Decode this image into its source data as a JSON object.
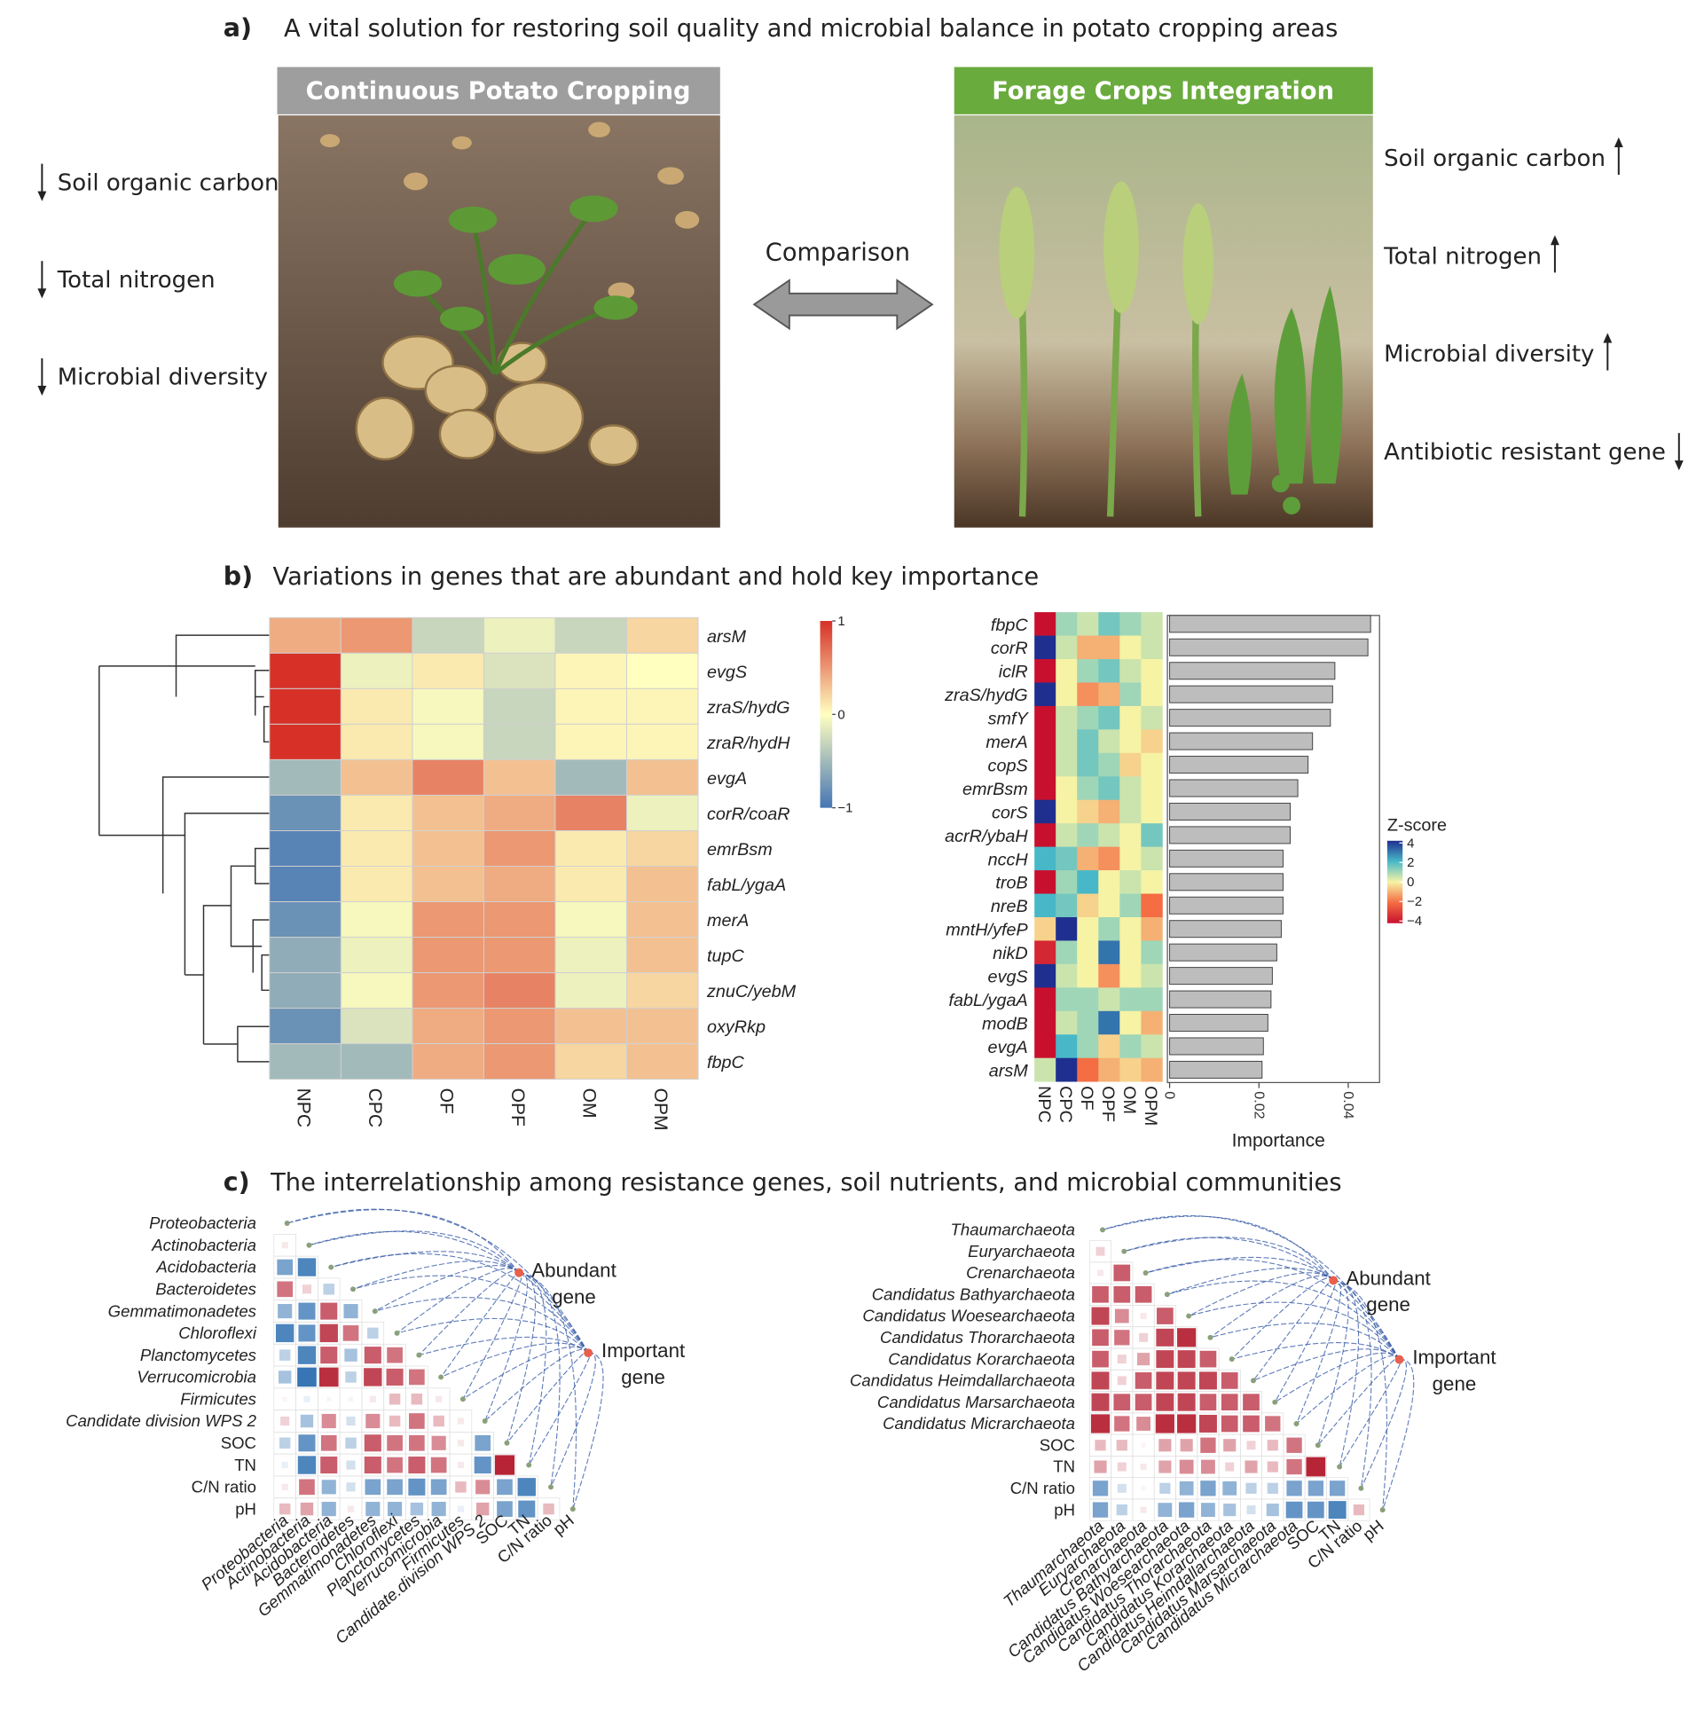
{
  "panel_a": {
    "label": "a)",
    "title": "A vital solution for restoring soil quality and microbial balance in potato cropping areas",
    "left": {
      "header": "Continuous Potato Cropping",
      "indicators": [
        {
          "text": "Soil organic carbon",
          "direction": "down"
        },
        {
          "text": "Total nitrogen",
          "direction": "down"
        },
        {
          "text": "Microbial diversity",
          "direction": "down"
        }
      ]
    },
    "right": {
      "header": "Forage Crops Integration",
      "indicators": [
        {
          "text": "Soil organic carbon",
          "direction": "up"
        },
        {
          "text": "Total nitrogen",
          "direction": "up"
        },
        {
          "text": "Microbial diversity",
          "direction": "up"
        },
        {
          "text": "Antibiotic resistant gene",
          "direction": "down"
        }
      ]
    },
    "comparison": "Comparison"
  },
  "panel_b": {
    "label": "b)",
    "title": "Variations in genes that are abundant and hold key importance",
    "heatmap": {
      "type": "heatmap",
      "rows": [
        "arsM",
        "evgS",
        "zraS/hydG",
        "zraR/hydH",
        "evgA",
        "corR/coaR",
        "emrBsm",
        "fabL/ygaA",
        "merA",
        "tupC",
        "znuC/yebM",
        "oxyRkp",
        "fbpC"
      ],
      "columns": [
        "NPC",
        "CPC",
        "OF",
        "OPF",
        "OM",
        "OPM"
      ],
      "values": [
        [
          0.4,
          0.5,
          -0.3,
          -0.1,
          -0.3,
          0.2
        ],
        [
          1,
          -0.1,
          0.1,
          -0.2,
          0.05,
          0
        ],
        [
          1,
          0.1,
          -0.05,
          -0.3,
          0.05,
          0.05
        ],
        [
          1,
          0.1,
          -0.05,
          -0.3,
          0.05,
          0.05
        ],
        [
          -0.5,
          0.3,
          0.6,
          0.3,
          -0.5,
          0.3
        ],
        [
          -0.8,
          0.1,
          0.3,
          0.4,
          0.6,
          -0.1
        ],
        [
          -0.9,
          0.1,
          0.3,
          0.5,
          0.1,
          0.2
        ],
        [
          -0.9,
          0.1,
          0.3,
          0.4,
          0.1,
          0.3
        ],
        [
          -0.8,
          -0.05,
          0.5,
          0.5,
          -0.05,
          0.3
        ],
        [
          -0.6,
          -0.1,
          0.5,
          0.5,
          -0.1,
          0.3
        ],
        [
          -0.6,
          -0.05,
          0.5,
          0.6,
          -0.1,
          0.2
        ],
        [
          -0.8,
          -0.2,
          0.4,
          0.5,
          0.3,
          0.3
        ],
        [
          -0.5,
          -0.5,
          0.4,
          0.5,
          0.2,
          0.3
        ]
      ],
      "colormap": [
        "#4575b4",
        "#ffffbf",
        "#d73027"
      ],
      "zlim": [
        -1,
        1
      ],
      "zticks": [
        1,
        0,
        {
          "value": -1,
          "label": "−1"
        }
      ]
    },
    "importance": {
      "type": "heatmap-bar",
      "rows": [
        "fbpC",
        "corR",
        "iclR",
        "zraS/hydG",
        "smfY",
        "merA",
        "copS",
        "emrBsm",
        "corS",
        "acrR/ybaH",
        "nccH",
        "troB",
        "nreB",
        "mntH/yfeP",
        "nikD",
        "evgS",
        "fabL/ygaA",
        "modB",
        "evgA",
        "arsM"
      ],
      "columns": [
        "NPC",
        "CPC",
        "OF",
        "OPF",
        "OM",
        "OPM"
      ],
      "values": [
        [
          -4,
          1,
          0.5,
          1.5,
          1,
          0.5
        ],
        [
          4,
          0.5,
          -1,
          -1,
          0,
          0.5
        ],
        [
          -4,
          0,
          1,
          1.5,
          0.5,
          0
        ],
        [
          4,
          0,
          -1.5,
          -1,
          1,
          0
        ],
        [
          -4,
          0.5,
          1,
          1.5,
          0,
          0.5
        ],
        [
          -4,
          0.5,
          1.5,
          0.5,
          0,
          -0.5
        ],
        [
          -4,
          0.5,
          1.5,
          1,
          -0.5,
          0
        ],
        [
          -4,
          0,
          1,
          1.5,
          0.5,
          0
        ],
        [
          4,
          0,
          -0.5,
          -1,
          0.5,
          0
        ],
        [
          -4,
          0.5,
          1,
          0.5,
          0,
          1.5
        ],
        [
          2,
          1.5,
          -1,
          -1.5,
          0,
          0.5
        ],
        [
          -4,
          1,
          2,
          0,
          0.5,
          0
        ],
        [
          2,
          1.5,
          -0.5,
          0,
          1,
          -2
        ],
        [
          -0.5,
          4,
          0,
          1,
          0,
          -1
        ],
        [
          -3.5,
          1,
          0,
          3,
          0,
          1
        ],
        [
          4,
          0.5,
          0,
          -1.5,
          0,
          0.5
        ],
        [
          -4,
          1,
          1,
          0.5,
          1,
          1
        ],
        [
          -4,
          0.5,
          1,
          3,
          0,
          -1
        ],
        [
          -4,
          2,
          1,
          -0.5,
          1,
          0.5
        ],
        [
          0.5,
          4,
          -2,
          -1,
          -0.5,
          -1
        ]
      ],
      "colormap": [
        "#c8102e",
        "#f46d43",
        "#f6f3a5",
        "#48b8c8",
        "#1f2f8f"
      ],
      "zlim": [
        -4,
        4
      ],
      "legend_title": "Z-score",
      "zticks": [
        4,
        2,
        0,
        {
          "value": -2,
          "label": "−2"
        },
        {
          "value": -4,
          "label": "−4"
        }
      ],
      "bar_values": [
        0.045,
        0.0444,
        0.037,
        0.0365,
        0.036,
        0.032,
        0.031,
        0.0287,
        0.027,
        0.027,
        0.0254,
        0.0254,
        0.0254,
        0.025,
        0.024,
        0.023,
        0.0227,
        0.022,
        0.021,
        0.0207
      ],
      "bar_color": "#bdbdbd",
      "xlim": [
        0,
        0.047
      ],
      "xticks": [
        0,
        0.02,
        0.04
      ],
      "xlabel": "Importance"
    }
  },
  "panel_c": {
    "label": "c)",
    "title": "The interrelationship among resistance genes, soil nutrients, and microbial communities",
    "colormap": [
      "#2166ac",
      "#ffffff",
      "#b2182b"
    ],
    "zlim": [
      -1,
      1
    ],
    "matrices": [
      {
        "type": "correlation",
        "row_labels": [
          "Proteobacteria",
          "Actinobacteria",
          "Acidobacteria",
          "Bacteroidetes",
          "Gemmatimonadetes",
          "Chloroflexi",
          "Planctomycetes",
          "Verrucomicrobia",
          "Firmicutes",
          "Candidate division WPS 2",
          "SOC",
          "TN",
          "C/N ratio",
          "pH"
        ],
        "column_labels": [
          "Proteobacteria",
          "Actinobacteria",
          "Acidobacteria",
          "Bacteroidetes",
          "Gemmatimonadetes",
          "Chloroflexi",
          "Planctomycetes",
          "Verrucomicrobia",
          "Firmicutes",
          "Candidate.division WPS 2",
          "SOC",
          "TN",
          "C/N ratio",
          "pH"
        ],
        "values": [
          [],
          [
            0.1
          ],
          [
            -0.6,
            -0.8
          ],
          [
            0.6,
            0.2,
            -0.3
          ],
          [
            -0.5,
            -0.7,
            0.7,
            -0.5
          ],
          [
            -0.8,
            -0.7,
            0.8,
            0.6,
            -0.3
          ],
          [
            -0.3,
            -0.8,
            0.7,
            -0.4,
            0.7,
            0.6
          ],
          [
            -0.4,
            -0.9,
            0.9,
            -0.3,
            0.8,
            0.7,
            0.6
          ],
          [
            0.05,
            -0.1,
            0.05,
            0.05,
            0.1,
            0.3,
            0.3,
            0.1
          ],
          [
            0.2,
            -0.4,
            0.5,
            -0.2,
            0.5,
            0.3,
            0.6,
            0.3,
            0.1
          ],
          [
            -0.3,
            -0.7,
            0.6,
            -0.3,
            0.7,
            0.6,
            0.6,
            0.5,
            0.1,
            -0.6
          ],
          [
            -0.1,
            -0.8,
            0.7,
            -0.2,
            0.7,
            0.6,
            0.7,
            0.6,
            0.1,
            -0.7,
            0.95
          ],
          [
            0.1,
            0.6,
            -0.5,
            -0.2,
            -0.6,
            -0.6,
            -0.7,
            -0.6,
            0.3,
            0.5,
            -0.6,
            -0.8
          ],
          [
            0.3,
            0.4,
            -0.5,
            0.1,
            -0.5,
            -0.5,
            -0.4,
            -0.5,
            -0.1,
            0.4,
            -0.6,
            -0.7,
            0.3
          ]
        ],
        "nodes": [
          [
            "Abundant",
            "gene"
          ],
          [
            "Important",
            "gene"
          ]
        ]
      },
      {
        "type": "correlation",
        "row_labels": [
          "Thaumarchaeota",
          "Euryarchaeota",
          "Crenarchaeota",
          "Candidatus Bathyarchaeota",
          "Candidatus Woesearchaeota",
          "Candidatus Thorarchaeota",
          "Candidatus Korarchaeota",
          "Candidatus Heimdallarchaeota",
          "Candidatus Marsarchaeota",
          "Candidatus Micrarchaeota",
          "SOC",
          "TN",
          "C/N ratio",
          "pH"
        ],
        "column_labels": [
          "Thaumarchaeota",
          "Euryarchaeota",
          "Crenarchaeota",
          "Candidatus Bathyarchaeota",
          "Candidatus Woesearchaeota",
          "Candidatus Thorarchaeota",
          "Candidatus Korarchaeota",
          "Candidatus Heimdallarchaeota",
          "Candidatus Marsarchaeota",
          "Candidatus Micrarchaeota",
          "SOC",
          "TN",
          "C/N ratio",
          "pH"
        ],
        "values": [
          [],
          [
            0.2
          ],
          [
            0.1,
            0.7
          ],
          [
            0.7,
            0.7,
            0.7
          ],
          [
            0.8,
            0.5,
            0.1,
            0.7
          ],
          [
            0.7,
            0.6,
            0.2,
            0.8,
            0.9
          ],
          [
            0.7,
            0.2,
            0.4,
            0.8,
            0.8,
            0.7
          ],
          [
            0.8,
            0.2,
            0.7,
            0.8,
            0.8,
            0.8,
            0.7
          ],
          [
            0.8,
            0.7,
            0.7,
            0.8,
            0.8,
            0.7,
            0.7,
            0.7
          ],
          [
            0.9,
            0.6,
            0.5,
            0.9,
            0.9,
            0.8,
            0.7,
            0.7,
            0.6
          ],
          [
            0.3,
            0.3,
            0.05,
            0.4,
            0.4,
            0.6,
            0.4,
            0.2,
            0.3,
            0.6
          ],
          [
            0.4,
            0.2,
            0.1,
            0.4,
            0.5,
            0.5,
            0.2,
            0.4,
            0.3,
            0.6,
            0.95
          ],
          [
            -0.6,
            -0.2,
            0.05,
            -0.3,
            -0.5,
            -0.6,
            -0.5,
            -0.3,
            -0.3,
            -0.6,
            -0.6,
            -0.6
          ],
          [
            -0.6,
            -0.3,
            0.1,
            -0.5,
            -0.6,
            -0.5,
            -0.4,
            -0.2,
            -0.4,
            -0.7,
            -0.7,
            -0.8,
            0.3
          ]
        ],
        "nodes": [
          [
            "Abundant",
            "gene"
          ],
          [
            "Important",
            "gene"
          ]
        ]
      }
    ]
  }
}
